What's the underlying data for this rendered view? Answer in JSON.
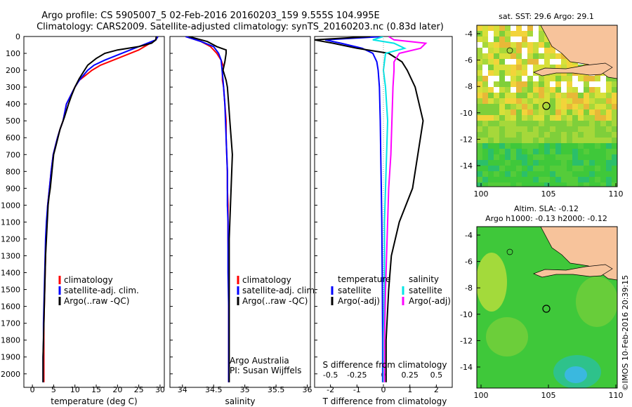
{
  "header": {
    "title1": "Argo profile: CS 5905007_5 02-Feb-2016 20160203_159 9.555S 104.995E",
    "title2": "Climatology: CARS2009. Satellite-adjusted climatology: synTS_20160203.nc (0.83d later)"
  },
  "colors": {
    "climatology": "#ff0000",
    "satellite": "#0000ff",
    "argo": "#000000",
    "sat_salinity": "#00e5e5",
    "argo_salinity": "#ff00ff",
    "land": "#f7c39b",
    "sea_green": "#2ecc40"
  },
  "depth_ticks": [
    0,
    100,
    200,
    300,
    400,
    500,
    600,
    700,
    800,
    900,
    1000,
    1100,
    1200,
    1300,
    1400,
    1500,
    1600,
    1700,
    1800,
    1900,
    2000
  ],
  "panel1": {
    "xlabel": "temperature (deg C)",
    "xticks": [
      "0",
      "5",
      "10",
      "15",
      "20",
      "25",
      "30"
    ],
    "legend": [
      "climatology",
      "satellite-adj. clim.",
      "Argo(..raw -QC)"
    ]
  },
  "panel2": {
    "xlabel": "salinity",
    "xticks": [
      "34",
      "34.5",
      "35",
      "35.5",
      "36"
    ],
    "legend": [
      "climatology",
      "satellite-adj. clim.",
      "Argo(..raw -QC)"
    ],
    "credit1": "Argo Australia",
    "credit2": "PI: Susan Wijffels"
  },
  "panel3": {
    "xlabel_bottom": "T difference from climatology",
    "xlabel_top": "S difference from climatology",
    "xticks_T": [
      "-2",
      "-1",
      "0",
      "1",
      "2"
    ],
    "xticks_S": [
      "-0.5",
      "-0.25",
      "0",
      "0.25",
      "0.5"
    ],
    "legend_T_title": "temperature",
    "legend_S_title": "salinity",
    "legend_items": [
      "satellite",
      "Argo(-adj)"
    ]
  },
  "map1": {
    "title": "sat. SST: 29.6 Argo: 29.1",
    "yticks": [
      "-4",
      "-6",
      "-8",
      "-10",
      "-12",
      "-14"
    ],
    "xticks": [
      "100",
      "105",
      "110"
    ]
  },
  "map2": {
    "title1": "Altim. SLA: -0.12",
    "title2": "Argo h1000: -0.13 h2000: -0.12",
    "yticks": [
      "-4",
      "-6",
      "-8",
      "-10",
      "-12",
      "-14"
    ],
    "xticks": [
      "100",
      "105",
      "110"
    ]
  },
  "credit_vertical": "©IMOS 10-Feb-2016 20:39:15",
  "chart_data": [
    {
      "type": "line",
      "xlabel": "temperature (deg C)",
      "ylabel": "",
      "xlim": [
        -2,
        31
      ],
      "ylim": [
        2080,
        0
      ],
      "series": [
        {
          "name": "climatology",
          "x": [
            29.5,
            29,
            27,
            25,
            22,
            19,
            16,
            14,
            12.5,
            11,
            10,
            9,
            8,
            7.2,
            6.5,
            5.9,
            5.4,
            4.9,
            4.4,
            4,
            3.8,
            3.6,
            3.4,
            3.2,
            3.1,
            3,
            2.9,
            2.8,
            2.7,
            2.7,
            2.7,
            2.7
          ],
          "y": [
            0,
            20,
            50,
            80,
            110,
            140,
            170,
            200,
            230,
            260,
            300,
            350,
            400,
            500,
            550,
            600,
            650,
            700,
            800,
            900,
            950,
            1000,
            1100,
            1200,
            1300,
            1400,
            1500,
            1600,
            1700,
            1800,
            1900,
            2050
          ]
        },
        {
          "name": "satellite-adj. clim.",
          "x": [
            29.5,
            29,
            26,
            23,
            20,
            17,
            14.5,
            13,
            12,
            11,
            10,
            9,
            8,
            7.2,
            6.5,
            5.9,
            5.4,
            4.9,
            4.4,
            4,
            3.8,
            3.6,
            3.3,
            3.1,
            3,
            2.9,
            2.8,
            2.7,
            2.6,
            2.6,
            2.5,
            2.5
          ],
          "y": [
            0,
            20,
            50,
            80,
            110,
            140,
            170,
            200,
            230,
            260,
            300,
            350,
            400,
            500,
            550,
            600,
            650,
            700,
            800,
            900,
            950,
            1000,
            1100,
            1200,
            1300,
            1400,
            1500,
            1600,
            1700,
            1800,
            1900,
            2050
          ]
        },
        {
          "name": "Argo(..raw -QC)",
          "x": [
            29.1,
            29,
            28,
            25,
            20,
            17,
            15,
            13,
            12,
            11,
            10,
            9.2,
            8.5,
            7.5,
            6.5,
            6,
            5.5,
            5,
            4.6,
            4.2,
            3.9,
            3.7,
            3.5,
            3.3,
            3.1,
            3,
            2.9,
            2.8,
            2.7,
            2.6,
            2.5,
            2.5
          ],
          "y": [
            0,
            20,
            40,
            60,
            80,
            100,
            130,
            170,
            210,
            250,
            300,
            350,
            400,
            480,
            550,
            600,
            650,
            700,
            800,
            900,
            950,
            1000,
            1100,
            1200,
            1300,
            1400,
            1500,
            1600,
            1700,
            1800,
            1900,
            2050
          ]
        }
      ]
    },
    {
      "type": "line",
      "xlabel": "salinity",
      "ylabel": "",
      "xlim": [
        33.8,
        36.05
      ],
      "ylim": [
        2080,
        0
      ],
      "series": [
        {
          "name": "climatology",
          "x": [
            34.05,
            34.3,
            34.45,
            34.55,
            34.62,
            34.66,
            34.64,
            34.64,
            34.66,
            34.68,
            34.7,
            34.7,
            34.71,
            34.72,
            34.72,
            34.73,
            34.73,
            34.73,
            34.74,
            34.74,
            34.74,
            34.74,
            34.74
          ],
          "y": [
            0,
            30,
            60,
            100,
            140,
            180,
            220,
            260,
            300,
            400,
            500,
            600,
            700,
            800,
            900,
            1000,
            1100,
            1200,
            1400,
            1600,
            1800,
            1900,
            2050
          ]
        },
        {
          "name": "satellite-adj. clim.",
          "x": [
            34.05,
            34.3,
            34.5,
            34.58,
            34.62,
            34.63,
            34.64,
            34.65,
            34.66,
            34.68,
            34.69,
            34.7,
            34.71,
            34.72,
            34.72,
            34.72,
            34.73,
            34.73,
            34.73,
            34.74,
            34.74,
            34.74,
            34.74
          ],
          "y": [
            0,
            30,
            60,
            100,
            140,
            180,
            220,
            260,
            300,
            400,
            500,
            600,
            700,
            800,
            900,
            1000,
            1100,
            1200,
            1400,
            1600,
            1800,
            1900,
            2050
          ]
        },
        {
          "name": "Argo(..raw -QC)",
          "x": [
            34.1,
            34.4,
            34.55,
            34.7,
            34.7,
            34.68,
            34.65,
            34.7,
            34.72,
            34.74,
            34.76,
            34.78,
            34.8,
            34.79,
            34.78,
            34.77,
            34.76,
            34.75,
            34.75,
            34.75,
            34.75,
            34.75,
            34.75
          ],
          "y": [
            0,
            30,
            60,
            80,
            100,
            150,
            200,
            260,
            300,
            400,
            500,
            600,
            700,
            800,
            900,
            1000,
            1100,
            1200,
            1400,
            1600,
            1800,
            1900,
            2050
          ]
        }
      ]
    },
    {
      "type": "line",
      "xlabel": "T difference from climatology",
      "ylabel": "",
      "xlim": [
        -2.6,
        2.6
      ],
      "ylim": [
        2080,
        0
      ],
      "series": [
        {
          "name": "temperature satellite",
          "x": [
            0,
            -2.2,
            -1.6,
            -0.8,
            -0.4,
            -0.25,
            -0.2,
            -0.15,
            -0.12,
            -0.1,
            -0.08,
            -0.06,
            -0.05,
            -0.04,
            -0.03,
            -0.03
          ],
          "y": [
            0,
            20,
            40,
            70,
            100,
            150,
            200,
            300,
            500,
            700,
            900,
            1100,
            1300,
            1500,
            1800,
            2050
          ]
        },
        {
          "name": "temperature Argo(-adj)",
          "x": [
            -0.5,
            -2.6,
            -1.9,
            -1,
            0.2,
            0.7,
            0.9,
            1.2,
            1.5,
            1.3,
            1.1,
            0.6,
            0.3,
            0.2,
            0.1,
            0.1
          ],
          "y": [
            0,
            20,
            40,
            70,
            100,
            150,
            200,
            300,
            500,
            700,
            900,
            1100,
            1300,
            1500,
            1800,
            2050
          ]
        },
        {
          "name": "salinity satellite",
          "x": [
            0,
            -0.1,
            0.1,
            0.2,
            0.02,
            0.01,
            0,
            0.02,
            0.04,
            0.03,
            0.02,
            0.01,
            0.01,
            0.01,
            0,
            0
          ],
          "y": [
            0,
            20,
            40,
            70,
            100,
            150,
            200,
            300,
            500,
            700,
            900,
            1100,
            1300,
            1500,
            1800,
            2050
          ]
        },
        {
          "name": "salinity Argo(-adj)",
          "x": [
            0.05,
            0.1,
            0.4,
            0.35,
            0.15,
            0.1,
            0.1,
            0.09,
            0.08,
            0.07,
            0.05,
            0.04,
            0.03,
            0.02,
            0.01,
            0.01
          ],
          "y": [
            0,
            20,
            40,
            70,
            100,
            150,
            200,
            300,
            500,
            700,
            900,
            1100,
            1300,
            1500,
            1800,
            2050
          ]
        }
      ]
    }
  ]
}
